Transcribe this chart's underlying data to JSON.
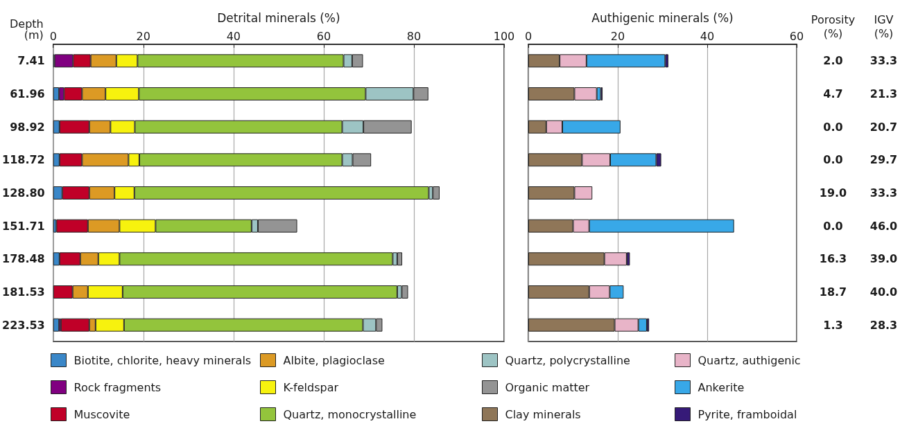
{
  "chart_data": [
    {
      "type": "bar",
      "orientation": "horizontal",
      "stacked": true,
      "xlabel": "Detrital minerals (%)",
      "ylabel": "Depth (m)",
      "categories": [
        "7.41",
        "61.96",
        "98.92",
        "118.72",
        "128.80",
        "151.71",
        "178.48",
        "181.53",
        "223.53"
      ],
      "xlim": [
        0,
        100
      ],
      "xticks": [
        0,
        20,
        40,
        60,
        80,
        100
      ],
      "grid": "x",
      "legend": "bottom",
      "series": [
        {
          "name": "Biotite, chlorite, heavy minerals",
          "color": "#3a87c8",
          "values": [
            0.3,
            1.3,
            1.4,
            1.4,
            2.0,
            0.7,
            1.4,
            0,
            1.3
          ]
        },
        {
          "name": "Rock fragments",
          "color": "#800080",
          "values": [
            4.1,
            1.1,
            0,
            0,
            0,
            0,
            0,
            0,
            0.4
          ]
        },
        {
          "name": "Muscovite",
          "color": "#c00028",
          "values": [
            3.9,
            4.0,
            6.6,
            5.0,
            6.0,
            7.0,
            4.6,
            4.3,
            6.3
          ]
        },
        {
          "name": "Albite, plagioclase",
          "color": "#dc9a24",
          "values": [
            5.7,
            5.2,
            4.7,
            10.3,
            5.6,
            7.0,
            4.0,
            3.4,
            1.4
          ]
        },
        {
          "name": "K-feldspar",
          "color": "#f7f20e",
          "values": [
            4.7,
            7.4,
            5.4,
            2.4,
            4.4,
            8.0,
            4.7,
            7.7,
            6.3
          ]
        },
        {
          "name": "Quartz, monocrystalline",
          "color": "#93c43c",
          "values": [
            45.7,
            50.3,
            46.0,
            45.0,
            65.3,
            21.3,
            60.6,
            60.9,
            53.0
          ]
        },
        {
          "name": "Quartz, polycrystalline",
          "color": "#9dc4c4",
          "values": [
            1.9,
            10.6,
            4.7,
            2.3,
            0.9,
            1.4,
            1.0,
            1.0,
            2.9
          ]
        },
        {
          "name": "Organic matter",
          "color": "#949494",
          "values": [
            2.4,
            3.3,
            10.7,
            4.1,
            1.5,
            8.7,
            1.1,
            1.4,
            1.4
          ]
        }
      ]
    },
    {
      "type": "bar",
      "orientation": "horizontal",
      "stacked": true,
      "xlabel": "Authigenic minerals (%)",
      "categories": [
        "7.41",
        "61.96",
        "98.92",
        "118.72",
        "128.80",
        "151.71",
        "178.48",
        "181.53",
        "223.53"
      ],
      "tick_labels": "x",
      "xlim": [
        0,
        60
      ],
      "xticks": [
        0,
        20,
        40,
        60
      ],
      "grid": "x",
      "legend": "bottom",
      "series": [
        {
          "name": "Clay minerals",
          "color": "#8f7658",
          "values": [
            7.0,
            10.3,
            4.0,
            12.0,
            10.3,
            10.0,
            17.0,
            13.6,
            19.3
          ]
        },
        {
          "name": "Quartz, authigenic",
          "color": "#e8b4c8",
          "values": [
            6.0,
            5.0,
            3.6,
            6.3,
            4.0,
            3.6,
            5.0,
            4.6,
            5.3
          ]
        },
        {
          "name": "Ankerite",
          "color": "#38a8e8",
          "values": [
            17.6,
            0.9,
            13.0,
            10.3,
            0,
            32.4,
            0,
            3.1,
            1.9
          ]
        },
        {
          "name": "Pyrite, framboidal",
          "color": "#361a78",
          "values": [
            0.7,
            0.4,
            0,
            1.1,
            0,
            0,
            0.7,
            0,
            0.5
          ]
        }
      ]
    },
    {
      "type": "heatmap",
      "categories": [
        "Porosity (%)",
        "IGV (%)"
      ],
      "y_categories": [
        "7.41",
        "61.96",
        "98.92",
        "118.72",
        "128.80",
        "151.71",
        "178.48",
        "181.53",
        "223.53"
      ],
      "tick_labels": "x",
      "cells": [
        [
          2.0,
          33.3
        ],
        [
          4.7,
          21.3
        ],
        [
          0.0,
          20.7
        ],
        [
          0.0,
          29.7
        ],
        [
          19.0,
          33.3
        ],
        [
          0.0,
          46.0
        ],
        [
          16.3,
          39.0
        ],
        [
          18.7,
          40.0
        ],
        [
          1.3,
          28.3
        ]
      ],
      "cell_labels": [
        [
          "2.0",
          "33.3"
        ],
        [
          "4.7",
          "21.3"
        ],
        [
          "0.0",
          "20.7"
        ],
        [
          "0.0",
          "29.7"
        ],
        [
          "19.0",
          "33.3"
        ],
        [
          "0.0",
          "46.0"
        ],
        [
          "16.3",
          "39.0"
        ],
        [
          "18.7",
          "40.0"
        ],
        [
          "1.3",
          "28.3"
        ]
      ]
    }
  ]
}
